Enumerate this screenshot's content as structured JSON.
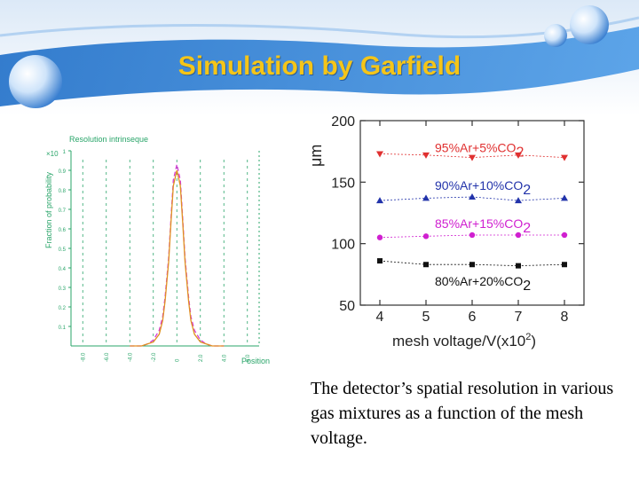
{
  "slide": {
    "title": "Simulation by Garfield",
    "caption": "The detector’s spatial resolution in various gas mixtures as a function of the mesh voltage.",
    "accent_color": "#2a72c9",
    "title_color": "#f5c518"
  },
  "chart_data": [
    {
      "type": "line",
      "title": "Resolution intrinseque",
      "ylabel": "Fraction of probability",
      "xlabel": "Position",
      "y_exponent_label": "×10",
      "ylim": [
        0,
        1
      ],
      "yticks": [
        "0.1",
        "0.2",
        "0.3",
        "0.4",
        "0.5",
        "0.6",
        "0.7",
        "0.8",
        "0.9",
        "1"
      ],
      "xticks": [
        "-8.0",
        "-6.0",
        "-4.0",
        "-2.0",
        "0",
        "2.0",
        "4.0",
        "6.0"
      ],
      "xlim": [
        -9,
        7
      ],
      "series": [
        {
          "color": "#d63ad6",
          "x": [
            -4,
            -3,
            -2.5,
            -2,
            -1.5,
            -1.2,
            -1,
            -0.7,
            -0.5,
            -0.3,
            0,
            0.3,
            0.5,
            0.7,
            1,
            1.2,
            1.5,
            2,
            2.5,
            3,
            4
          ],
          "y": [
            0,
            0,
            0.01,
            0.03,
            0.08,
            0.15,
            0.25,
            0.45,
            0.65,
            0.85,
            0.93,
            0.85,
            0.65,
            0.45,
            0.25,
            0.15,
            0.08,
            0.03,
            0.01,
            0,
            0
          ]
        },
        {
          "color": "#e09020",
          "x": [
            -4,
            -3,
            -2.5,
            -2,
            -1.5,
            -1.2,
            -1,
            -0.7,
            -0.5,
            -0.3,
            0,
            0.3,
            0.5,
            0.7,
            1,
            1.2,
            1.5,
            2,
            2.5,
            3,
            4
          ],
          "y": [
            0,
            0,
            0.01,
            0.02,
            0.06,
            0.13,
            0.23,
            0.43,
            0.63,
            0.82,
            0.9,
            0.82,
            0.63,
            0.43,
            0.23,
            0.13,
            0.06,
            0.02,
            0.01,
            0,
            0
          ]
        }
      ]
    },
    {
      "type": "line",
      "ylabel": "μm",
      "xlabel": "mesh voltage/V(x10",
      "xlabel_sup": "2",
      "xlabel_close": ")",
      "ylim": [
        50,
        200
      ],
      "xlim": [
        4,
        8
      ],
      "yticks": [
        50,
        100,
        150,
        200
      ],
      "xticks": [
        4,
        5,
        6,
        7,
        8
      ],
      "x": [
        4,
        5,
        6,
        7,
        8
      ],
      "series": [
        {
          "label": "95%Ar+5%CO",
          "sub": "2",
          "color": "#e03030",
          "marker": "triangle-down",
          "values": [
            173,
            172,
            170,
            172,
            170
          ]
        },
        {
          "label": "90%Ar+10%CO",
          "sub": "2",
          "color": "#2233aa",
          "marker": "triangle-up",
          "values": [
            135,
            137,
            138,
            135,
            137
          ]
        },
        {
          "label": "85%Ar+15%CO",
          "sub": "2",
          "color": "#d020d0",
          "marker": "circle",
          "values": [
            105,
            106,
            107,
            107,
            107
          ]
        },
        {
          "label": "80%Ar+20%CO",
          "sub": "2",
          "color": "#111111",
          "marker": "square",
          "values": [
            86,
            83,
            83,
            82,
            83
          ]
        }
      ]
    }
  ]
}
